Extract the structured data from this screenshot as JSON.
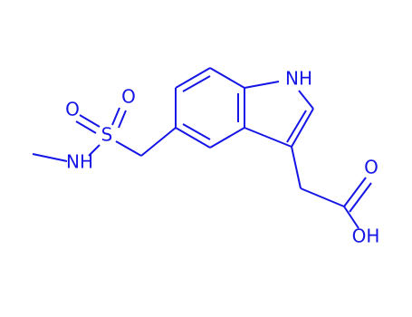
{
  "atoms": {
    "indole_nh": "NH",
    "sulfonyl_o1": "O",
    "sulfonyl_o2": "O",
    "sulfur": "S",
    "amide_nh": "NH",
    "carbonyl_o": "O",
    "hydroxyl": "OH"
  }
}
